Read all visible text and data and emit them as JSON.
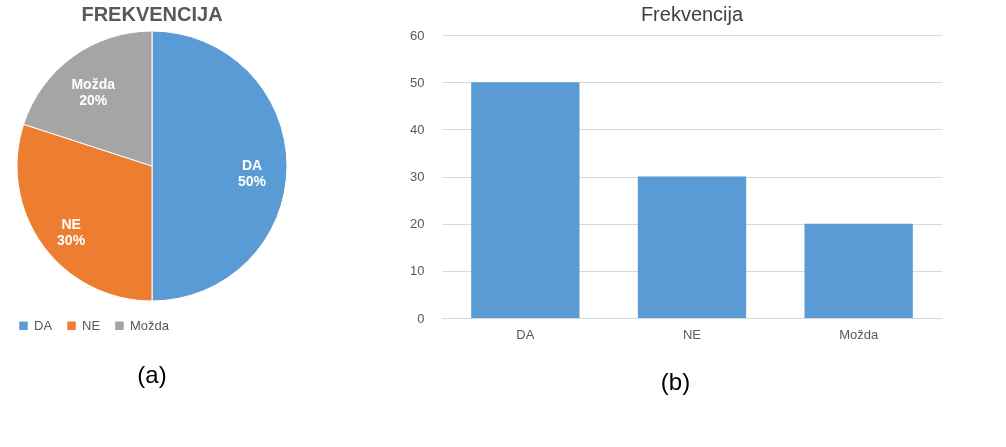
{
  "chart_data": [
    {
      "type": "pie",
      "title": "FREKVENCIJA",
      "categories": [
        "DA",
        "NE",
        "Možda"
      ],
      "values": [
        50,
        30,
        20
      ],
      "colors": [
        "#5b9bd5",
        "#ed7d31",
        "#a5a5a5"
      ],
      "value_labels": [
        "50%",
        "30%",
        "20%"
      ],
      "legend": "bottom",
      "annotations": [
        "(a)"
      ]
    },
    {
      "type": "bar",
      "title": "Frekvencija",
      "categories": [
        "DA",
        "NE",
        "Možda"
      ],
      "values": [
        50,
        30,
        20
      ],
      "color": "#5b9bd5",
      "ylim": [
        0,
        60
      ],
      "yticks": [
        0,
        10,
        20,
        30,
        40,
        50,
        60
      ],
      "grid": "y",
      "annotations": [
        "(b)"
      ]
    }
  ]
}
